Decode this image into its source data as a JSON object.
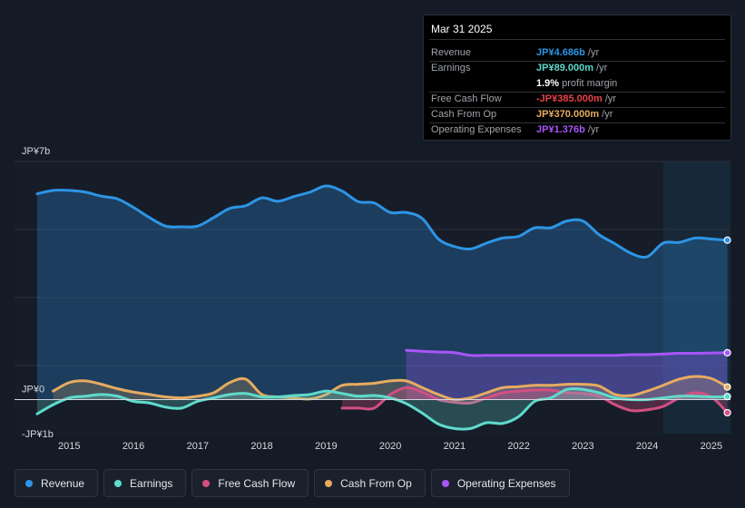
{
  "colors": {
    "revenue": "#2d95e6",
    "earnings": "#5fdacb",
    "fcf": "#d24f82",
    "cfo": "#e6ab60",
    "opex": "#a855f7",
    "background": "#151b26"
  },
  "tooltip": {
    "date": "Mar 31 2025",
    "rows": [
      {
        "label": "Revenue",
        "value": "JP¥4.686b",
        "unit": " /yr",
        "color": "#2d95e6"
      },
      {
        "label": "Earnings",
        "value": "JP¥89.000m",
        "unit": " /yr",
        "color": "#5fdacb"
      },
      {
        "label": "",
        "value": "1.9%",
        "unit": " profit margin",
        "color": "#ffffff"
      },
      {
        "label": "Free Cash Flow",
        "value": "-JP¥385.000m",
        "unit": " /yr",
        "color": "#e8414a"
      },
      {
        "label": "Cash From Op",
        "value": "JP¥370.000m",
        "unit": " /yr",
        "color": "#e6ab60"
      },
      {
        "label": "Operating Expenses",
        "value": "JP¥1.376b",
        "unit": " /yr",
        "color": "#a855f7"
      }
    ]
  },
  "legend": [
    {
      "label": "Revenue",
      "color": "#2d95e6"
    },
    {
      "label": "Earnings",
      "color": "#5fdacb"
    },
    {
      "label": "Free Cash Flow",
      "color": "#d24f82"
    },
    {
      "label": "Cash From Op",
      "color": "#e6ab60"
    },
    {
      "label": "Operating Expenses",
      "color": "#a855f7"
    }
  ],
  "chart_data": {
    "type": "line",
    "unit": "JP¥ billions",
    "ylim": [
      -1,
      7
    ],
    "y_tick_labels": [
      {
        "label": "JP¥7b",
        "value": 7
      },
      {
        "label": "JP¥0",
        "value": 0
      },
      {
        "label": "-JP¥1b",
        "value": -1
      }
    ],
    "xlim": [
      2014.6,
      2025.27
    ],
    "x_tick_labels": [
      "2015",
      "2016",
      "2017",
      "2018",
      "2019",
      "2020",
      "2021",
      "2022",
      "2023",
      "2024",
      "2025"
    ],
    "x_tick_values": [
      2015,
      2016,
      2017,
      2018,
      2019,
      2020,
      2021,
      2022,
      2023,
      2024,
      2025
    ],
    "highlight_start": 2024.25,
    "series": [
      {
        "name": "Revenue",
        "key": "revenue",
        "fill": true,
        "x": [
          2014.5,
          2014.75,
          2015.0,
          2015.25,
          2015.5,
          2015.75,
          2016.0,
          2016.25,
          2016.5,
          2016.75,
          2017.0,
          2017.25,
          2017.5,
          2017.75,
          2018.0,
          2018.25,
          2018.5,
          2018.75,
          2019.0,
          2019.25,
          2019.5,
          2019.75,
          2020.0,
          2020.25,
          2020.5,
          2020.75,
          2021.0,
          2021.25,
          2021.5,
          2021.75,
          2022.0,
          2022.25,
          2022.5,
          2022.75,
          2023.0,
          2023.25,
          2023.5,
          2023.75,
          2024.0,
          2024.25,
          2024.5,
          2024.75,
          2025.0,
          2025.25
        ],
        "values": [
          6.05,
          6.15,
          6.15,
          6.1,
          5.98,
          5.9,
          5.65,
          5.35,
          5.1,
          5.08,
          5.1,
          5.35,
          5.62,
          5.7,
          5.93,
          5.83,
          5.97,
          6.1,
          6.28,
          6.13,
          5.82,
          5.78,
          5.5,
          5.5,
          5.32,
          4.72,
          4.5,
          4.43,
          4.6,
          4.75,
          4.8,
          5.05,
          5.05,
          5.25,
          5.25,
          4.85,
          4.58,
          4.3,
          4.2,
          4.6,
          4.62,
          4.75,
          4.72,
          4.686
        ]
      },
      {
        "name": "Earnings",
        "key": "earnings",
        "fill": true,
        "x": [
          2014.5,
          2014.75,
          2015.0,
          2015.25,
          2015.5,
          2015.75,
          2016.0,
          2016.25,
          2016.5,
          2016.75,
          2017.0,
          2017.25,
          2017.5,
          2017.75,
          2018.0,
          2018.25,
          2018.5,
          2018.75,
          2019.0,
          2019.25,
          2019.5,
          2019.75,
          2020.0,
          2020.25,
          2020.5,
          2020.75,
          2021.0,
          2021.25,
          2021.5,
          2021.75,
          2022.0,
          2022.25,
          2022.5,
          2022.75,
          2023.0,
          2023.25,
          2023.5,
          2023.75,
          2024.0,
          2024.25,
          2024.5,
          2024.75,
          2025.0,
          2025.25
        ],
        "values": [
          -0.42,
          -0.15,
          0.05,
          0.1,
          0.15,
          0.1,
          -0.05,
          -0.1,
          -0.22,
          -0.25,
          -0.05,
          0.05,
          0.15,
          0.18,
          0.08,
          0.08,
          0.12,
          0.15,
          0.25,
          0.18,
          0.1,
          0.12,
          0.05,
          -0.12,
          -0.4,
          -0.72,
          -0.85,
          -0.85,
          -0.68,
          -0.7,
          -0.5,
          -0.05,
          0.05,
          0.3,
          0.3,
          0.2,
          0.05,
          0.0,
          0.0,
          0.05,
          0.1,
          0.1,
          0.08,
          0.089
        ]
      },
      {
        "name": "Free Cash Flow",
        "key": "fcf",
        "fill": true,
        "x": [
          2019.25,
          2019.5,
          2019.75,
          2020.0,
          2020.25,
          2020.5,
          2020.75,
          2021.0,
          2021.25,
          2021.5,
          2021.75,
          2022.0,
          2022.25,
          2022.5,
          2022.75,
          2023.0,
          2023.25,
          2023.5,
          2023.75,
          2024.0,
          2024.25,
          2024.5,
          2024.75,
          2025.0,
          2025.25
        ],
        "values": [
          -0.25,
          -0.25,
          -0.25,
          0.15,
          0.35,
          0.22,
          0.0,
          -0.08,
          -0.1,
          0.05,
          0.2,
          0.25,
          0.28,
          0.28,
          0.2,
          0.18,
          0.1,
          -0.15,
          -0.32,
          -0.3,
          -0.2,
          0.05,
          0.2,
          0.08,
          -0.385
        ]
      },
      {
        "name": "Cash From Op",
        "key": "cfo",
        "fill": true,
        "x": [
          2014.75,
          2015.0,
          2015.25,
          2015.5,
          2015.75,
          2016.0,
          2016.25,
          2016.5,
          2016.75,
          2017.0,
          2017.25,
          2017.5,
          2017.75,
          2018.0,
          2018.25,
          2018.5,
          2018.75,
          2019.0,
          2019.25,
          2019.5,
          2019.75,
          2020.0,
          2020.25,
          2020.5,
          2020.75,
          2021.0,
          2021.25,
          2021.5,
          2021.75,
          2022.0,
          2022.25,
          2022.5,
          2022.75,
          2023.0,
          2023.25,
          2023.5,
          2023.75,
          2024.0,
          2024.25,
          2024.5,
          2024.75,
          2025.0,
          2025.25
        ],
        "values": [
          0.25,
          0.5,
          0.55,
          0.45,
          0.32,
          0.22,
          0.15,
          0.08,
          0.05,
          0.1,
          0.2,
          0.5,
          0.6,
          0.15,
          0.08,
          0.05,
          0.02,
          0.15,
          0.42,
          0.45,
          0.48,
          0.55,
          0.55,
          0.35,
          0.15,
          0.0,
          0.05,
          0.2,
          0.35,
          0.38,
          0.42,
          0.42,
          0.45,
          0.45,
          0.4,
          0.15,
          0.12,
          0.25,
          0.42,
          0.6,
          0.68,
          0.62,
          0.37
        ]
      },
      {
        "name": "Operating Expenses",
        "key": "opex",
        "fill": true,
        "x": [
          2020.25,
          2020.5,
          2020.75,
          2021.0,
          2021.25,
          2021.5,
          2021.75,
          2022.0,
          2022.25,
          2022.5,
          2022.75,
          2023.0,
          2023.25,
          2023.5,
          2023.75,
          2024.0,
          2024.25,
          2024.5,
          2024.75,
          2025.0,
          2025.25
        ],
        "values": [
          1.45,
          1.42,
          1.4,
          1.38,
          1.3,
          1.3,
          1.3,
          1.3,
          1.3,
          1.3,
          1.3,
          1.3,
          1.3,
          1.3,
          1.32,
          1.32,
          1.34,
          1.36,
          1.36,
          1.37,
          1.376
        ]
      }
    ]
  }
}
